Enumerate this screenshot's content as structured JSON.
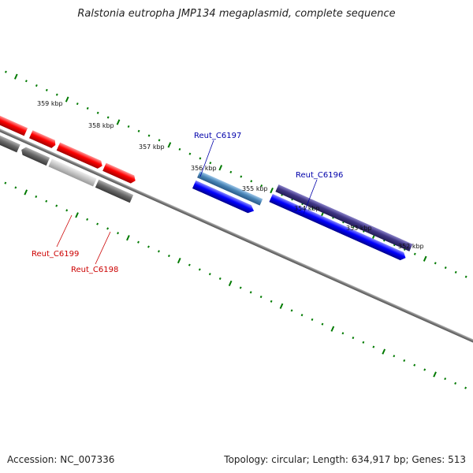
{
  "title": "Ralstonia eutropha JMP134 megaplasmid, complete sequence",
  "footer": {
    "accession": "Accession: NC_007336",
    "summary": "Topology: circular; Length: 634,917 bp; Genes: 513"
  },
  "colors": {
    "backbone": "#888888",
    "tick": "#007a00",
    "red_gene": "#ff0000",
    "blue_gene": "#0000ff",
    "gray_gene": "#666666",
    "label_red": "#cc0000",
    "label_blue": "#0000aa"
  },
  "ruler": {
    "labels": [
      "359 kbp",
      "358 kbp",
      "357 kbp",
      "356 kbp",
      "355 kbp",
      "354 kbp",
      "353 kbp",
      "352 kbp"
    ]
  },
  "genes": {
    "reut_c6197": "Reut_C6197",
    "reut_c6196": "Reut_C6196",
    "reut_c6199": "Reut_C6199",
    "reut_c6198": "Reut_C6198"
  }
}
